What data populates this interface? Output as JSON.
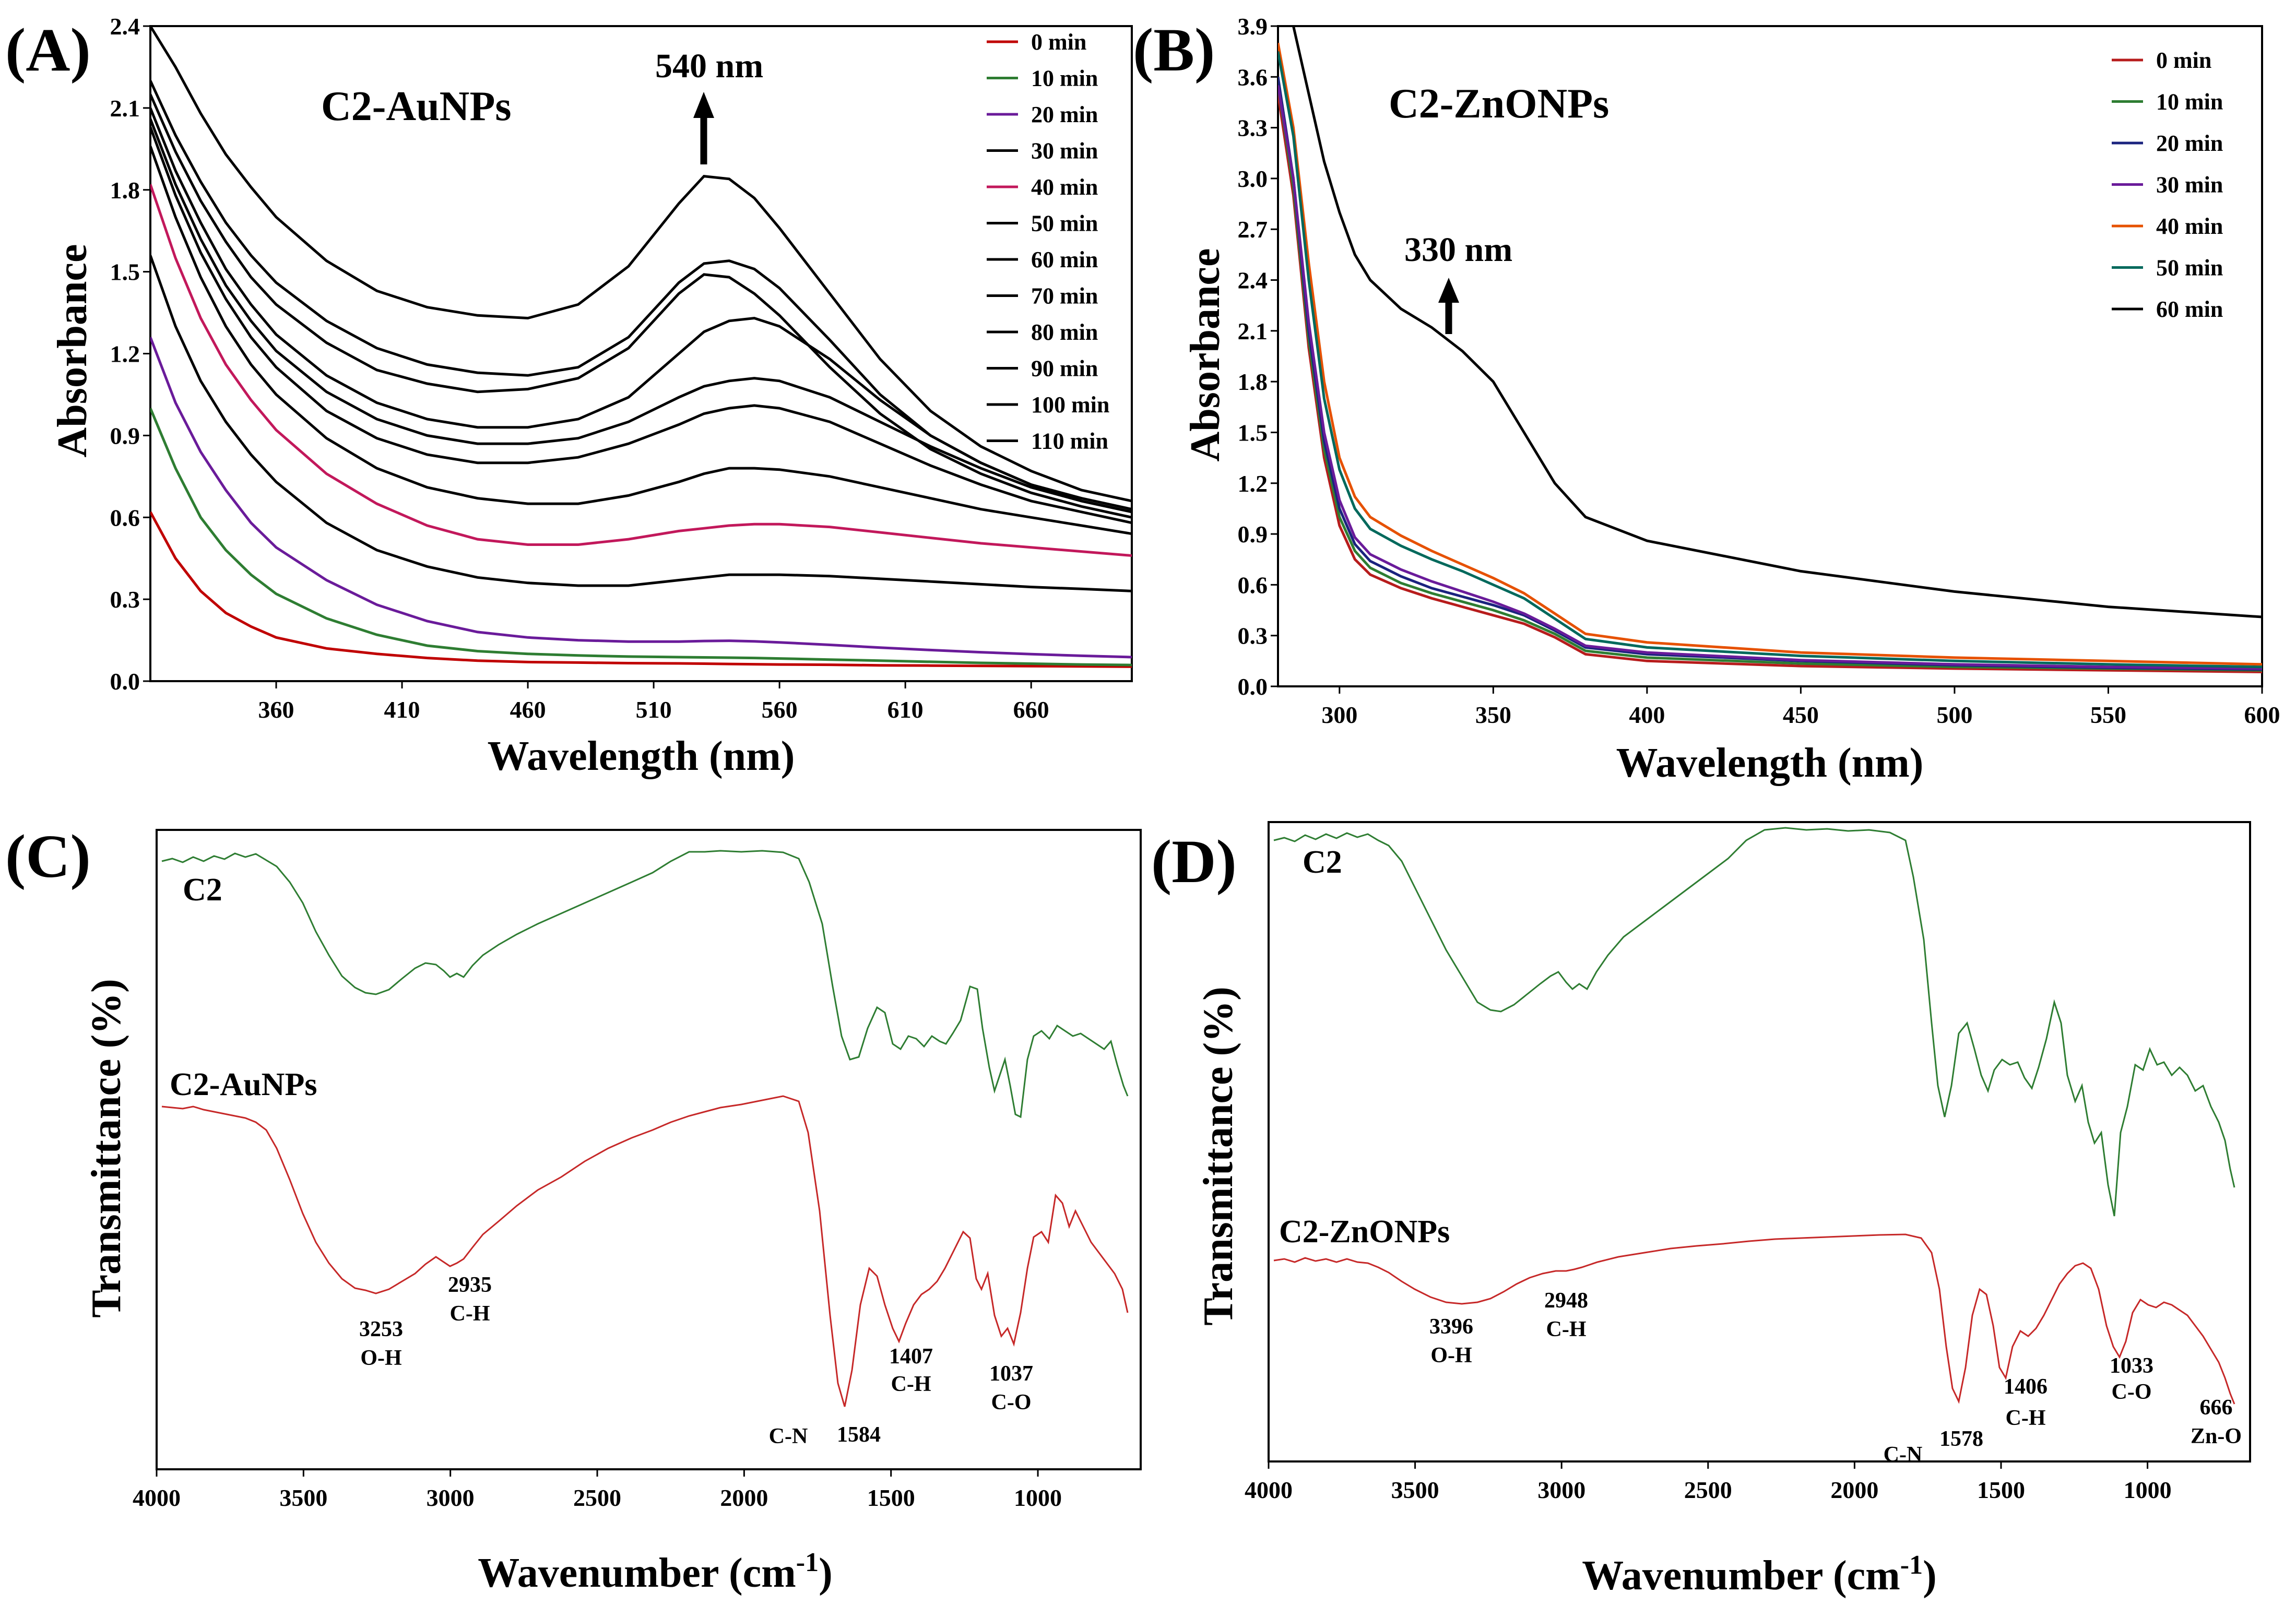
{
  "chart_data": [
    {
      "panel": "(A)",
      "type": "line",
      "title": "C2-AuNPs",
      "xlabel": "Wavelength (nm)",
      "ylabel": "Absorbance",
      "xlim": [
        310,
        700
      ],
      "ylim": [
        0,
        2.4
      ],
      "xticks": [
        360,
        410,
        460,
        510,
        560,
        610,
        660
      ],
      "yticks": [
        "0.0",
        "0.3",
        "0.6",
        "0.9",
        "1.2",
        "1.5",
        "1.8",
        "2.1",
        "2.4"
      ],
      "annotation": {
        "text": "540 nm",
        "x": 530
      },
      "x": [
        310,
        320,
        330,
        340,
        350,
        360,
        380,
        400,
        420,
        440,
        460,
        480,
        500,
        520,
        530,
        540,
        550,
        560,
        580,
        600,
        620,
        640,
        660,
        680,
        700
      ],
      "series": [
        {
          "name": "0 min",
          "color": "#c00000",
          "values": [
            0.62,
            0.45,
            0.33,
            0.25,
            0.2,
            0.16,
            0.12,
            0.1,
            0.085,
            0.075,
            0.07,
            0.068,
            0.066,
            0.065,
            0.064,
            0.063,
            0.062,
            0.061,
            0.06,
            0.058,
            0.057,
            0.056,
            0.055,
            0.054,
            0.053
          ]
        },
        {
          "name": "10 min",
          "color": "#2e7d32",
          "values": [
            1.0,
            0.78,
            0.6,
            0.48,
            0.39,
            0.32,
            0.23,
            0.17,
            0.13,
            0.11,
            0.1,
            0.094,
            0.09,
            0.088,
            0.087,
            0.086,
            0.085,
            0.083,
            0.079,
            0.075,
            0.071,
            0.067,
            0.064,
            0.061,
            0.059
          ]
        },
        {
          "name": "20 min",
          "color": "#6a1b9a",
          "values": [
            1.26,
            1.02,
            0.84,
            0.7,
            0.58,
            0.49,
            0.37,
            0.28,
            0.22,
            0.18,
            0.16,
            0.15,
            0.145,
            0.145,
            0.147,
            0.148,
            0.146,
            0.142,
            0.133,
            0.123,
            0.114,
            0.106,
            0.099,
            0.093,
            0.088
          ]
        },
        {
          "name": "30 min",
          "color": "#000000",
          "values": [
            1.56,
            1.3,
            1.1,
            0.95,
            0.83,
            0.73,
            0.58,
            0.48,
            0.42,
            0.38,
            0.36,
            0.35,
            0.35,
            0.37,
            0.38,
            0.39,
            0.39,
            0.39,
            0.385,
            0.375,
            0.365,
            0.355,
            0.345,
            0.338,
            0.33
          ]
        },
        {
          "name": "40 min",
          "color": "#c2185b",
          "values": [
            1.82,
            1.55,
            1.33,
            1.16,
            1.03,
            0.92,
            0.76,
            0.65,
            0.57,
            0.52,
            0.5,
            0.5,
            0.52,
            0.55,
            0.56,
            0.57,
            0.575,
            0.575,
            0.565,
            0.545,
            0.525,
            0.505,
            0.49,
            0.475,
            0.46
          ]
        },
        {
          "name": "50 min",
          "color": "#000000",
          "values": [
            1.96,
            1.7,
            1.48,
            1.3,
            1.16,
            1.05,
            0.89,
            0.78,
            0.71,
            0.67,
            0.65,
            0.65,
            0.68,
            0.73,
            0.76,
            0.78,
            0.78,
            0.775,
            0.75,
            0.71,
            0.67,
            0.63,
            0.6,
            0.57,
            0.54
          ]
        },
        {
          "name": "60 min",
          "color": "#000000",
          "values": [
            2.03,
            1.78,
            1.57,
            1.4,
            1.26,
            1.15,
            0.99,
            0.89,
            0.83,
            0.8,
            0.8,
            0.82,
            0.87,
            0.94,
            0.98,
            1.0,
            1.01,
            1.0,
            0.95,
            0.87,
            0.79,
            0.72,
            0.66,
            0.62,
            0.58
          ]
        },
        {
          "name": "70 min",
          "color": "#000000",
          "values": [
            2.06,
            1.82,
            1.62,
            1.45,
            1.32,
            1.21,
            1.06,
            0.96,
            0.9,
            0.87,
            0.87,
            0.89,
            0.95,
            1.04,
            1.08,
            1.1,
            1.11,
            1.1,
            1.04,
            0.95,
            0.86,
            0.78,
            0.71,
            0.66,
            0.62
          ]
        },
        {
          "name": "80 min",
          "color": "#000000",
          "values": [
            2.1,
            1.87,
            1.68,
            1.51,
            1.38,
            1.27,
            1.12,
            1.02,
            0.96,
            0.93,
            0.93,
            0.96,
            1.04,
            1.2,
            1.28,
            1.32,
            1.33,
            1.3,
            1.18,
            1.03,
            0.9,
            0.8,
            0.72,
            0.66,
            0.62
          ]
        },
        {
          "name": "90 min",
          "color": "#000000",
          "values": [
            2.15,
            1.94,
            1.76,
            1.61,
            1.48,
            1.38,
            1.24,
            1.14,
            1.09,
            1.06,
            1.07,
            1.11,
            1.22,
            1.42,
            1.49,
            1.48,
            1.42,
            1.34,
            1.15,
            0.98,
            0.85,
            0.76,
            0.69,
            0.64,
            0.6
          ]
        },
        {
          "name": "100 min",
          "color": "#000000",
          "values": [
            2.2,
            2.0,
            1.83,
            1.68,
            1.56,
            1.46,
            1.32,
            1.22,
            1.16,
            1.13,
            1.12,
            1.15,
            1.26,
            1.46,
            1.53,
            1.54,
            1.51,
            1.44,
            1.25,
            1.05,
            0.9,
            0.8,
            0.72,
            0.67,
            0.63
          ]
        },
        {
          "name": "110 min",
          "color": "#000000",
          "values": [
            2.4,
            2.25,
            2.08,
            1.93,
            1.81,
            1.7,
            1.54,
            1.43,
            1.37,
            1.34,
            1.33,
            1.38,
            1.52,
            1.75,
            1.85,
            1.84,
            1.77,
            1.66,
            1.42,
            1.18,
            0.99,
            0.86,
            0.77,
            0.7,
            0.66
          ]
        }
      ]
    },
    {
      "panel": "(B)",
      "type": "line",
      "title": "C2-ZnONPs",
      "xlabel": "Wavelength (nm)",
      "ylabel": "Absorbance",
      "xlim": [
        280,
        600
      ],
      "ylim": [
        0,
        3.9
      ],
      "xticks": [
        300,
        350,
        400,
        450,
        500,
        550,
        600
      ],
      "yticks": [
        "0.0",
        "0.3",
        "0.6",
        "0.9",
        "1.2",
        "1.5",
        "1.8",
        "2.1",
        "2.4",
        "2.7",
        "3.0",
        "3.3",
        "3.6",
        "3.9"
      ],
      "annotation": {
        "text": "330 nm",
        "x": 335
      },
      "x": [
        280,
        285,
        290,
        295,
        300,
        305,
        310,
        320,
        330,
        340,
        350,
        360,
        370,
        380,
        400,
        450,
        500,
        550,
        600
      ],
      "series": [
        {
          "name": "0 min",
          "color": "#b71c1c",
          "values": [
            3.5,
            2.9,
            2.0,
            1.35,
            0.95,
            0.75,
            0.66,
            0.58,
            0.52,
            0.47,
            0.42,
            0.37,
            0.29,
            0.19,
            0.15,
            0.12,
            0.105,
            0.095,
            0.085
          ]
        },
        {
          "name": "10 min",
          "color": "#2e7d32",
          "values": [
            3.55,
            2.95,
            2.05,
            1.4,
            1.0,
            0.8,
            0.7,
            0.61,
            0.55,
            0.5,
            0.45,
            0.39,
            0.31,
            0.21,
            0.17,
            0.135,
            0.115,
            0.105,
            0.095
          ]
        },
        {
          "name": "20 min",
          "color": "#1a237e",
          "values": [
            3.6,
            3.0,
            2.1,
            1.45,
            1.05,
            0.84,
            0.74,
            0.65,
            0.58,
            0.53,
            0.48,
            0.42,
            0.33,
            0.23,
            0.19,
            0.15,
            0.125,
            0.11,
            0.1
          ]
        },
        {
          "name": "30 min",
          "color": "#6a1b9a",
          "values": [
            3.55,
            3.0,
            2.15,
            1.5,
            1.1,
            0.88,
            0.78,
            0.69,
            0.62,
            0.56,
            0.5,
            0.43,
            0.34,
            0.24,
            0.2,
            0.155,
            0.13,
            0.115,
            0.105
          ]
        },
        {
          "name": "40 min",
          "color": "#e65100",
          "values": [
            3.8,
            3.3,
            2.5,
            1.8,
            1.35,
            1.12,
            1.0,
            0.89,
            0.8,
            0.72,
            0.64,
            0.55,
            0.43,
            0.31,
            0.26,
            0.2,
            0.17,
            0.15,
            0.13
          ]
        },
        {
          "name": "50 min",
          "color": "#00695c",
          "values": [
            3.75,
            3.25,
            2.4,
            1.7,
            1.28,
            1.05,
            0.93,
            0.83,
            0.75,
            0.68,
            0.6,
            0.52,
            0.4,
            0.28,
            0.23,
            0.18,
            0.15,
            0.13,
            0.115
          ]
        },
        {
          "name": "60 min",
          "color": "#000000",
          "values": [
            3.95,
            3.9,
            3.5,
            3.1,
            2.8,
            2.55,
            2.4,
            2.23,
            2.12,
            1.98,
            1.8,
            1.5,
            1.2,
            1.0,
            0.86,
            0.68,
            0.56,
            0.47,
            0.41
          ]
        }
      ]
    },
    {
      "panel": "(C)",
      "type": "line",
      "xlabel": "Wavenumber (cm",
      "xlabel_sup": "-1",
      "xlabel_end": ")",
      "ylabel": "Transmittance (%)",
      "xlim": [
        4000,
        650
      ],
      "xticks": [
        4000,
        3500,
        3000,
        2500,
        2000,
        1500,
        1000
      ],
      "series": [
        {
          "name": "C2",
          "color": "#2e7d32"
        },
        {
          "name": "C2-AuNPs",
          "color": "#c62828"
        }
      ],
      "peaks": [
        {
          "wn": "3253",
          "group": "O-H"
        },
        {
          "wn": "2935",
          "group": "C-H"
        },
        {
          "wn": "1584",
          "group": "C-N"
        },
        {
          "wn": "1407",
          "group": "C-H"
        },
        {
          "wn": "1037",
          "group": "C-O"
        }
      ]
    },
    {
      "panel": "(D)",
      "type": "line",
      "xlabel": "Wavenumber (cm",
      "xlabel_sup": "-1",
      "xlabel_end": ")",
      "ylabel": "Transmittance (%)",
      "xlim": [
        4000,
        650
      ],
      "xticks": [
        4000,
        3500,
        3000,
        2500,
        2000,
        1500,
        1000
      ],
      "series": [
        {
          "name": "C2",
          "color": "#2e7d32"
        },
        {
          "name": "C2-ZnONPs",
          "color": "#c62828"
        }
      ],
      "peaks": [
        {
          "wn": "3396",
          "group": "O-H"
        },
        {
          "wn": "2948",
          "group": "C-H"
        },
        {
          "wn": "1578",
          "group": "C-N"
        },
        {
          "wn": "1406",
          "group": "C-H"
        },
        {
          "wn": "1033",
          "group": "C-O"
        },
        {
          "wn": "666",
          "group": "Zn-O"
        }
      ]
    }
  ]
}
